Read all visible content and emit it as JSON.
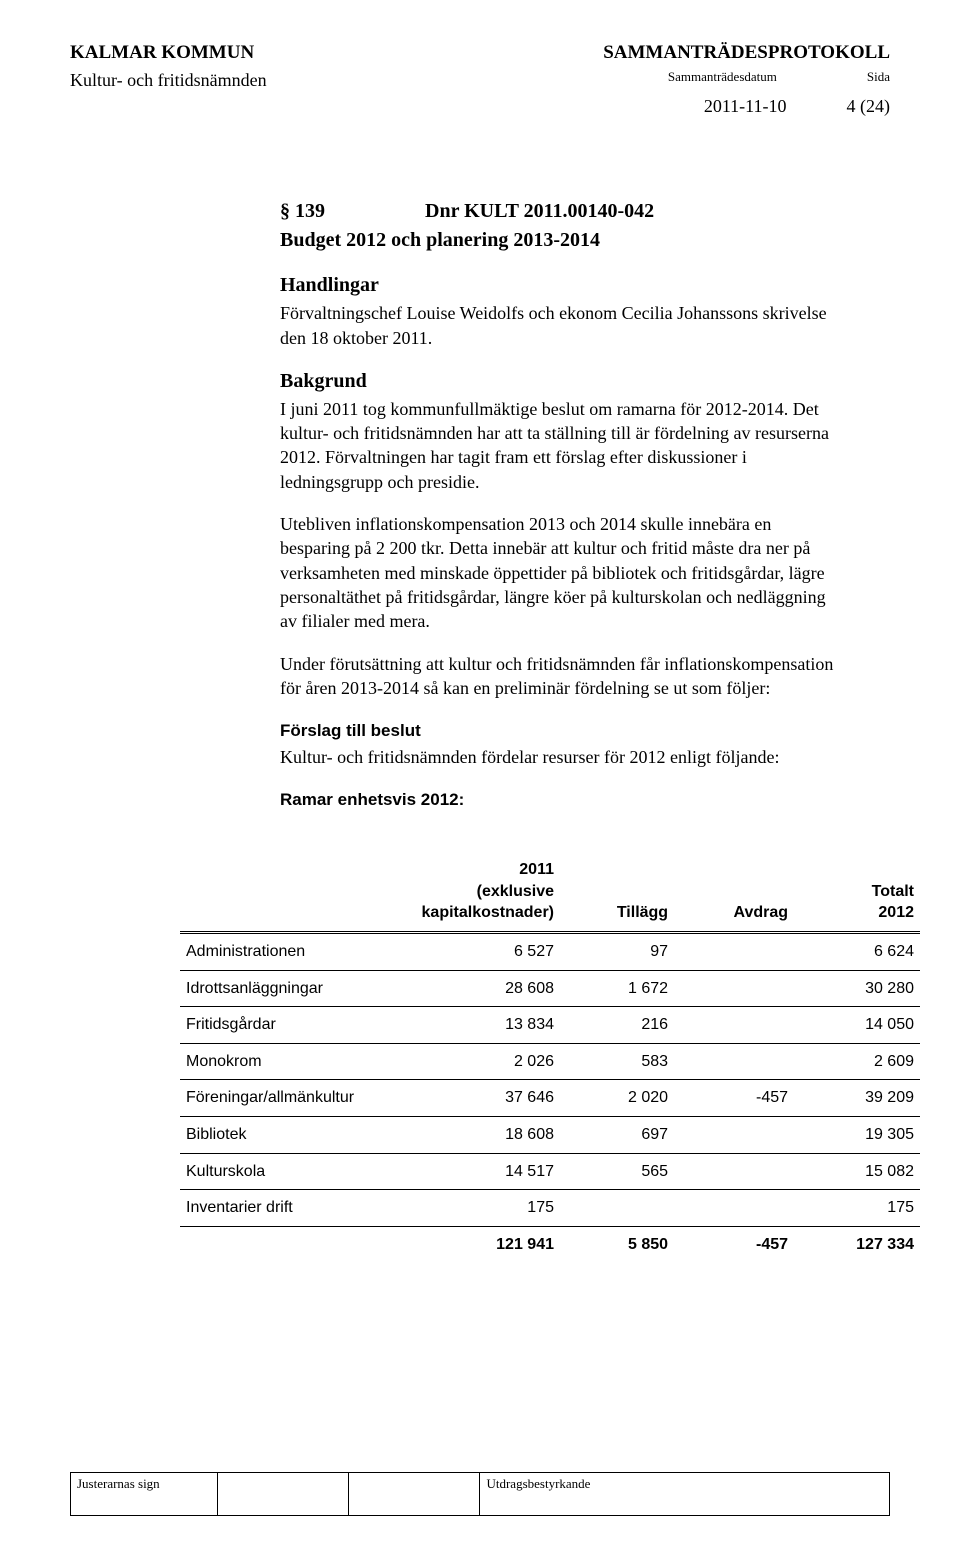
{
  "header": {
    "left": "KALMAR KOMMUN",
    "right": "SAMMANTRÄDESPROTOKOLL",
    "sub_left": "Kultur- och fritidsnämnden",
    "sub_mid": "Sammanträdesdatum",
    "sub_right": "Sida",
    "date": "2011-11-10",
    "page": "4 (24)"
  },
  "doc": {
    "section_sym": "§ 139",
    "dnr": "Dnr KULT 2011.00140-042",
    "title": "Budget 2012 och planering 2013-2014",
    "handlingar_label": "Handlingar",
    "handlingar_text": "Förvaltningschef Louise Weidolfs och ekonom Cecilia Johanssons skrivelse den 18 oktober 2011.",
    "bakgrund_label": "Bakgrund",
    "bakgrund_p1": "I juni 2011 tog kommunfullmäktige beslut om ramarna för 2012-2014. Det kultur- och fritidsnämnden har att ta ställning till är fördelning av resurserna 2012. Förvaltningen har tagit fram ett förslag efter diskussioner i ledningsgrupp och presidie.",
    "bakgrund_p2": "Utebliven inflationskompensation 2013 och 2014 skulle innebära en besparing på 2 200 tkr. Detta innebär att kultur och fritid måste dra ner på verksamheten med minskade öppettider på bibliotek och fritidsgårdar, lägre personaltäthet på fritidsgårdar, längre köer på kulturskolan och nedläggning av filialer med mera.",
    "bakgrund_p3": "Under förutsättning att kultur och fritidsnämnden får inflationskompensation för åren 2013-2014 så kan en preliminär fördelning se ut som följer:",
    "forslag_label": "Förslag till beslut",
    "forslag_text": "Kultur- och fritidsnämnden fördelar resurser för 2012 enligt följande:",
    "ramar_label": "Ramar enhetsvis 2012:"
  },
  "table": {
    "col1_l1": "2011",
    "col1_l2": "(exklusive",
    "col1_l3": "kapitalkostnader)",
    "col2": "Tillägg",
    "col3": "Avdrag",
    "col4_l1": "Totalt",
    "col4_l2": "2012",
    "rows": [
      {
        "label": "Administrationen",
        "c1": "6 527",
        "c2": "97",
        "c3": "",
        "c4": "6 624"
      },
      {
        "label": "Idrottsanläggningar",
        "c1": "28 608",
        "c2": "1 672",
        "c3": "",
        "c4": "30 280"
      },
      {
        "label": "Fritidsgårdar",
        "c1": "13 834",
        "c2": "216",
        "c3": "",
        "c4": "14 050"
      },
      {
        "label": "Monokrom",
        "c1": "2 026",
        "c2": "583",
        "c3": "",
        "c4": "2 609"
      },
      {
        "label": "Föreningar/allmänkultur",
        "c1": "37 646",
        "c2": "2 020",
        "c3": "-457",
        "c4": "39 209"
      },
      {
        "label": "Bibliotek",
        "c1": "18 608",
        "c2": "697",
        "c3": "",
        "c4": "19 305"
      },
      {
        "label": "Kulturskola",
        "c1": "14 517",
        "c2": "565",
        "c3": "",
        "c4": "15 082"
      },
      {
        "label": "Inventarier drift",
        "c1": "175",
        "c2": "",
        "c3": "",
        "c4": "175"
      }
    ],
    "total": {
      "label": "",
      "c1": "121 941",
      "c2": "5 850",
      "c3": "-457",
      "c4": "127 334"
    }
  },
  "footer": {
    "left": "Justerarnas sign",
    "right": "Utdragsbestyrkande"
  }
}
